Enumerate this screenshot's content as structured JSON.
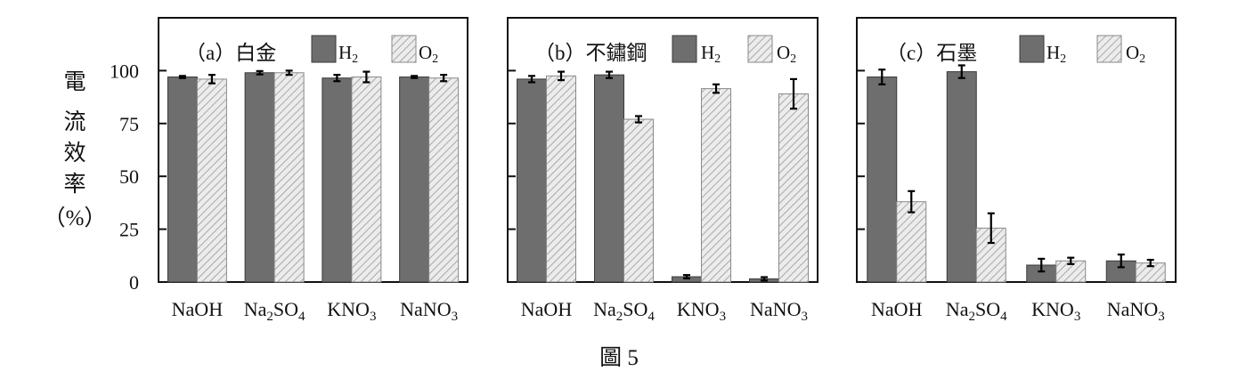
{
  "figure": {
    "ylabel_chars": [
      "電",
      "流",
      "效",
      "率",
      "（%）"
    ],
    "caption": "圖 5",
    "legend": {
      "h2_main": "H",
      "h2_sub": "2",
      "o2_main": "O",
      "o2_sub": "2"
    },
    "colors": {
      "h2": "#6e6e6e",
      "o2_hatch_bg": "#ececec",
      "o2_hatch_line": "#a8a8a8",
      "frame": "#111111"
    }
  },
  "chart_data": [
    {
      "type": "bar",
      "title": "（a）白金",
      "categories": [
        {
          "main": "NaOH",
          "parts": [
            [
              "NaOH",
              false
            ]
          ]
        },
        {
          "main": "Na2SO4",
          "parts": [
            [
              "Na",
              false
            ],
            [
              "2",
              true
            ],
            [
              "SO",
              false
            ],
            [
              "4",
              true
            ]
          ]
        },
        {
          "main": "KNO3",
          "parts": [
            [
              "KNO",
              false
            ],
            [
              "3",
              true
            ]
          ]
        },
        {
          "main": "NaNO3",
          "parts": [
            [
              "NaNO",
              false
            ],
            [
              "3",
              true
            ]
          ]
        }
      ],
      "series": [
        {
          "name": "H2",
          "values": [
            97,
            99,
            96.5,
            97
          ],
          "errors": [
            0.5,
            0.8,
            1.5,
            0.5
          ]
        },
        {
          "name": "O2",
          "values": [
            96,
            99,
            97,
            96.5
          ],
          "errors": [
            2,
            1,
            2.5,
            1.5
          ]
        }
      ],
      "yticks": [
        0,
        25,
        50,
        75,
        100
      ],
      "ylim": [
        0,
        125
      ],
      "show_ytick_labels": true
    },
    {
      "type": "bar",
      "title": "（b）不鏽鋼",
      "categories": [
        {
          "main": "NaOH",
          "parts": [
            [
              "NaOH",
              false
            ]
          ]
        },
        {
          "main": "Na2SO4",
          "parts": [
            [
              "Na",
              false
            ],
            [
              "2",
              true
            ],
            [
              "SO",
              false
            ],
            [
              "4",
              true
            ]
          ]
        },
        {
          "main": "KNO3",
          "parts": [
            [
              "KNO",
              false
            ],
            [
              "3",
              true
            ]
          ]
        },
        {
          "main": "NaNO3",
          "parts": [
            [
              "NaNO",
              false
            ],
            [
              "3",
              true
            ]
          ]
        }
      ],
      "series": [
        {
          "name": "H2",
          "values": [
            96,
            98,
            2.5,
            1.5
          ],
          "errors": [
            1.5,
            1.5,
            0.8,
            0.8
          ]
        },
        {
          "name": "O2",
          "values": [
            97.5,
            77,
            91.5,
            89
          ],
          "errors": [
            2,
            1.5,
            2,
            7
          ]
        }
      ],
      "yticks": [
        0,
        25,
        50,
        75,
        100
      ],
      "ylim": [
        0,
        125
      ],
      "show_ytick_labels": false
    },
    {
      "type": "bar",
      "title": "（c）石墨",
      "categories": [
        {
          "main": "NaOH",
          "parts": [
            [
              "NaOH",
              false
            ]
          ]
        },
        {
          "main": "Na2SO4",
          "parts": [
            [
              "Na",
              false
            ],
            [
              "2",
              true
            ],
            [
              "SO",
              false
            ],
            [
              "4",
              true
            ]
          ]
        },
        {
          "main": "KNO3",
          "parts": [
            [
              "KNO",
              false
            ],
            [
              "3",
              true
            ]
          ]
        },
        {
          "main": "NaNO3",
          "parts": [
            [
              "NaNO",
              false
            ],
            [
              "3",
              true
            ]
          ]
        }
      ],
      "series": [
        {
          "name": "H2",
          "values": [
            97,
            99.5,
            8,
            10
          ],
          "errors": [
            3.5,
            3,
            3,
            3
          ]
        },
        {
          "name": "O2",
          "values": [
            38,
            25.5,
            10,
            9
          ],
          "errors": [
            5,
            7,
            1.5,
            1.5
          ]
        }
      ],
      "yticks": [
        0,
        25,
        50,
        75,
        100
      ],
      "ylim": [
        0,
        125
      ],
      "show_ytick_labels": false
    }
  ]
}
